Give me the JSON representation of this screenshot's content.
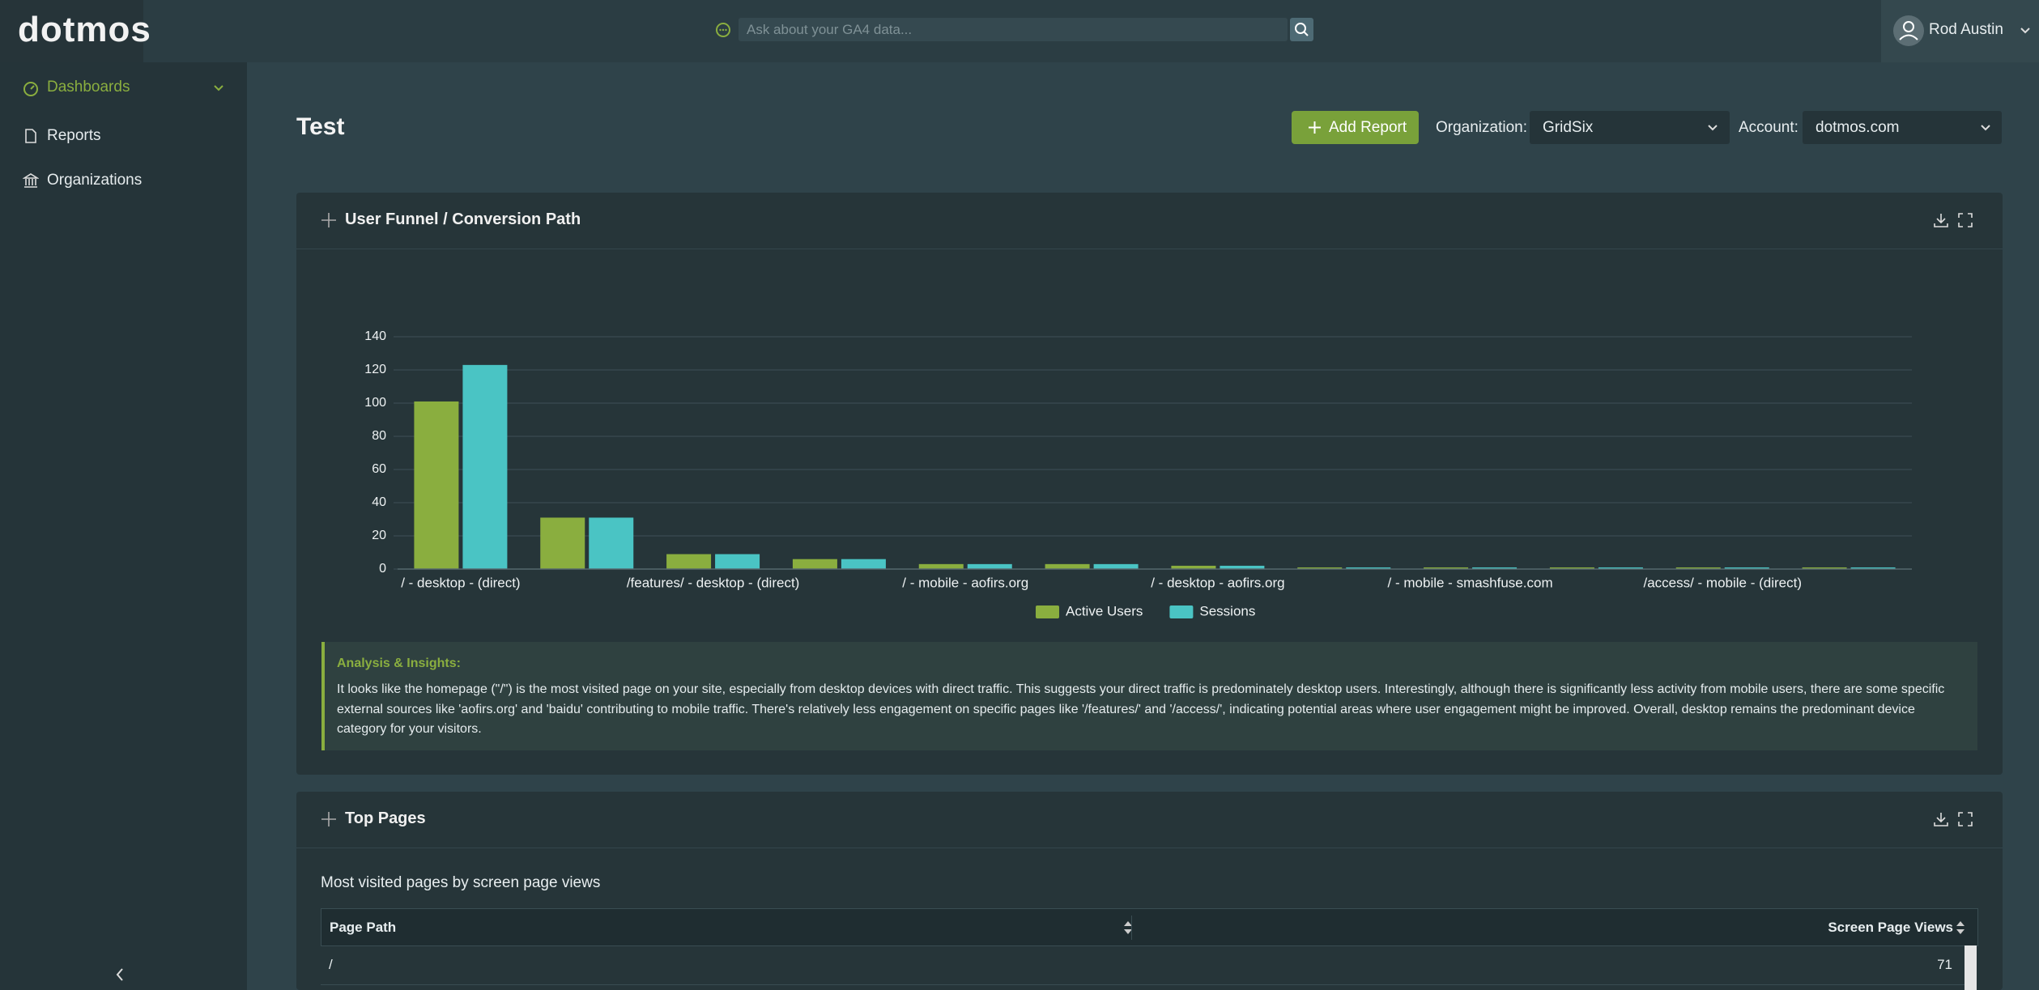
{
  "header": {
    "logo": "dotmos",
    "search_placeholder": "Ask about your GA4 data...",
    "user_name": "Rod Austin"
  },
  "sidebar": {
    "items": [
      "Dashboards",
      "Reports",
      "Organizations"
    ]
  },
  "toolbar": {
    "title": "Test",
    "add_report": "Add Report",
    "organization_label": "Organization:",
    "organization": "GridSix",
    "account_label": "Account:",
    "account": "dotmos.com"
  },
  "chart_data": {
    "type": "bar",
    "title": "User Funnel / Conversion Path",
    "categories": [
      "/ - desktop - (direct)",
      null,
      "/features/ - desktop - (direct)",
      null,
      "/ - mobile - aofirs.org",
      null,
      "/ - desktop - aofirs.org",
      null,
      "/ - mobile - smashfuse.com",
      null,
      "/access/ - mobile - (direct)",
      null
    ],
    "series": [
      {
        "name": "Active Users",
        "color": "#8aae3f",
        "values": [
          101,
          31,
          9,
          6,
          3,
          3,
          2,
          1,
          1,
          1,
          1,
          1
        ]
      },
      {
        "name": "Sessions",
        "color": "#4ac4c4",
        "values": [
          123,
          31,
          9,
          6,
          3,
          3,
          2,
          1,
          1,
          1,
          1,
          1
        ]
      }
    ],
    "ylim": [
      0,
      140
    ],
    "yticks": [
      0,
      20,
      40,
      60,
      80,
      100,
      120,
      140
    ],
    "grid": true,
    "legend": "bottom"
  },
  "insights": {
    "heading": "Analysis & Insights:",
    "text": "It looks like the homepage (\"/\") is the most visited page on your site, especially from desktop devices with direct traffic. This suggests your direct traffic is predominately desktop users. Interestingly, although there is significantly less activity from mobile users, there are some specific external sources like 'aofirs.org' and 'baidu' contributing to mobile traffic. There's relatively less engagement on specific pages like '/features/' and '/access/', indicating potential areas where user engagement might be improved. Overall, desktop remains the predominant device category for your visitors."
  },
  "table": {
    "title": "Top Pages",
    "subtitle": "Most visited pages by screen page views",
    "columns": [
      "Page Path",
      "Screen Page Views"
    ],
    "rows": [
      [
        "/",
        71
      ]
    ]
  }
}
